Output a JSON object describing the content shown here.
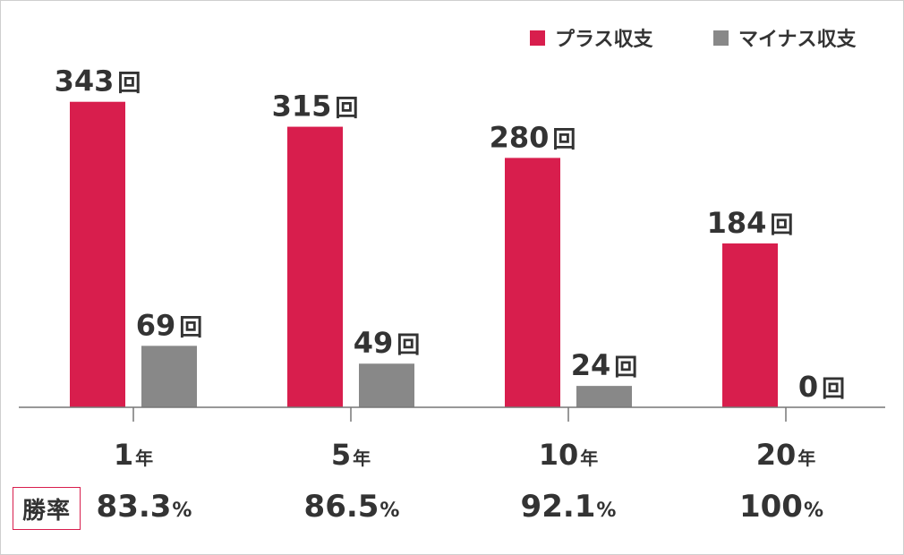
{
  "chart_data": {
    "type": "bar",
    "categories": [
      "1",
      "5",
      "10",
      "20"
    ],
    "category_unit": "年",
    "series": [
      {
        "name": "プラス収支",
        "color": "#d81e4d",
        "values": [
          343,
          315,
          280,
          184
        ]
      },
      {
        "name": "マイナス収支",
        "color": "#888888",
        "values": [
          69,
          49,
          24,
          0
        ]
      }
    ],
    "value_unit": "回",
    "ylim": [
      0,
      400
    ],
    "grid": false,
    "legend": "top-right"
  },
  "win_rate": {
    "label": "勝率",
    "unit": "%",
    "values": [
      "83.3",
      "86.5",
      "92.1",
      "100"
    ]
  }
}
